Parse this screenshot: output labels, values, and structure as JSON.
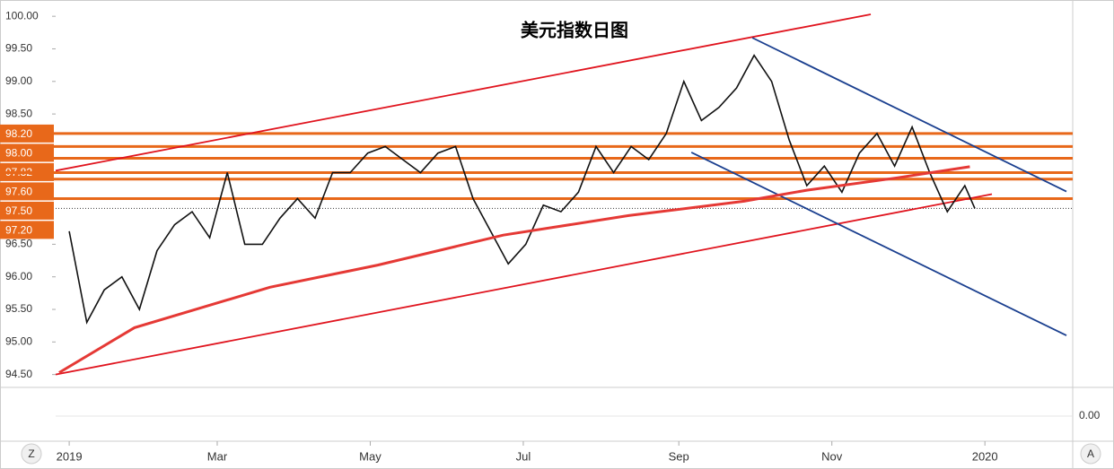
{
  "chart_data": {
    "type": "line",
    "title": "美元指数日图",
    "xlim": [
      -5.4,
      400
    ],
    "ylim": [
      94.33,
      100.25
    ],
    "xticks": [
      {
        "value": 0,
        "label": "2019"
      },
      {
        "value": 59,
        "label": "Mar"
      },
      {
        "value": 120,
        "label": "May"
      },
      {
        "value": 181,
        "label": "Jul"
      },
      {
        "value": 243,
        "label": "Sep"
      },
      {
        "value": 304,
        "label": "Nov"
      },
      {
        "value": 365,
        "label": "2020"
      }
    ],
    "yticks": [
      {
        "value": 100,
        "label": "100.00"
      },
      {
        "value": 99.5,
        "label": "99.50"
      },
      {
        "value": 99,
        "label": "99.00"
      },
      {
        "value": 98.5,
        "label": "98.50"
      },
      {
        "value": 96.5,
        "label": "96.50"
      },
      {
        "value": 96,
        "label": "96.00"
      },
      {
        "value": 95.5,
        "label": "95.50"
      },
      {
        "value": 95,
        "label": "95.00"
      },
      {
        "value": 94.5,
        "label": "94.50"
      }
    ],
    "series": [
      {
        "color": "#111111",
        "x": [
          0,
          7,
          14,
          21,
          28,
          35,
          42,
          49,
          56,
          63,
          70,
          77,
          84,
          91,
          98,
          105,
          112,
          119,
          126,
          133,
          140,
          147,
          154,
          161,
          168,
          175,
          182,
          189,
          196,
          203,
          210,
          217,
          224,
          231,
          238,
          245,
          252,
          259,
          266,
          273,
          280,
          287,
          294,
          301,
          308,
          315,
          322,
          329,
          336,
          343,
          350,
          357,
          361
        ],
        "values": [
          96.7,
          95.3,
          95.8,
          96.0,
          95.5,
          96.4,
          96.8,
          97.0,
          96.6,
          97.6,
          96.5,
          96.5,
          96.9,
          97.2,
          96.9,
          97.6,
          97.6,
          97.9,
          98.0,
          97.8,
          97.6,
          97.9,
          98.0,
          97.2,
          96.7,
          96.2,
          96.5,
          97.1,
          97.0,
          97.3,
          98.0,
          97.6,
          98.0,
          97.8,
          98.2,
          99.0,
          98.4,
          98.6,
          98.9,
          99.4,
          99.0,
          98.1,
          97.4,
          97.7,
          97.3,
          97.9,
          98.2,
          97.7,
          98.3,
          97.6,
          97.0,
          97.4,
          97.05
        ]
      },
      {
        "color": "#e53935",
        "x": [
          -4,
          26,
          80,
          123,
          173,
          223,
          269,
          294,
          330,
          359
        ],
        "values": [
          94.53,
          95.22,
          95.84,
          96.18,
          96.64,
          96.94,
          97.16,
          97.33,
          97.52,
          97.69
        ]
      }
    ],
    "trendlines": [
      {
        "color": "#e0141e",
        "x": [
          -5.4,
          319.5
        ],
        "values": [
          97.63,
          100.03
        ]
      },
      {
        "color": "#e0141e",
        "x": [
          -5.4,
          367.8
        ],
        "values": [
          94.5,
          97.27
        ]
      },
      {
        "color": "#1a3f8f",
        "x": [
          272.3,
          397.5
        ],
        "values": [
          99.67,
          97.31
        ]
      },
      {
        "color": "#1a3f8f",
        "x": [
          248,
          397.5
        ],
        "values": [
          97.91,
          95.1
        ]
      }
    ],
    "level_color": "#e8681a",
    "levels": [
      {
        "value": 98.2,
        "label": "98.20"
      },
      {
        "value": 98.0,
        "label": "98.00"
      },
      {
        "value": 97.82,
        "label": "97.82"
      },
      {
        "value": 97.6,
        "label": "97.60"
      },
      {
        "value": 97.5,
        "label": "97.50"
      },
      {
        "value": 97.2,
        "label": "97.20"
      }
    ],
    "last_price": 97.05,
    "macd_ticks": [
      {
        "value": 0,
        "label": "0.00"
      }
    ]
  },
  "toolbar": {
    "left": "Z",
    "right": "A"
  }
}
